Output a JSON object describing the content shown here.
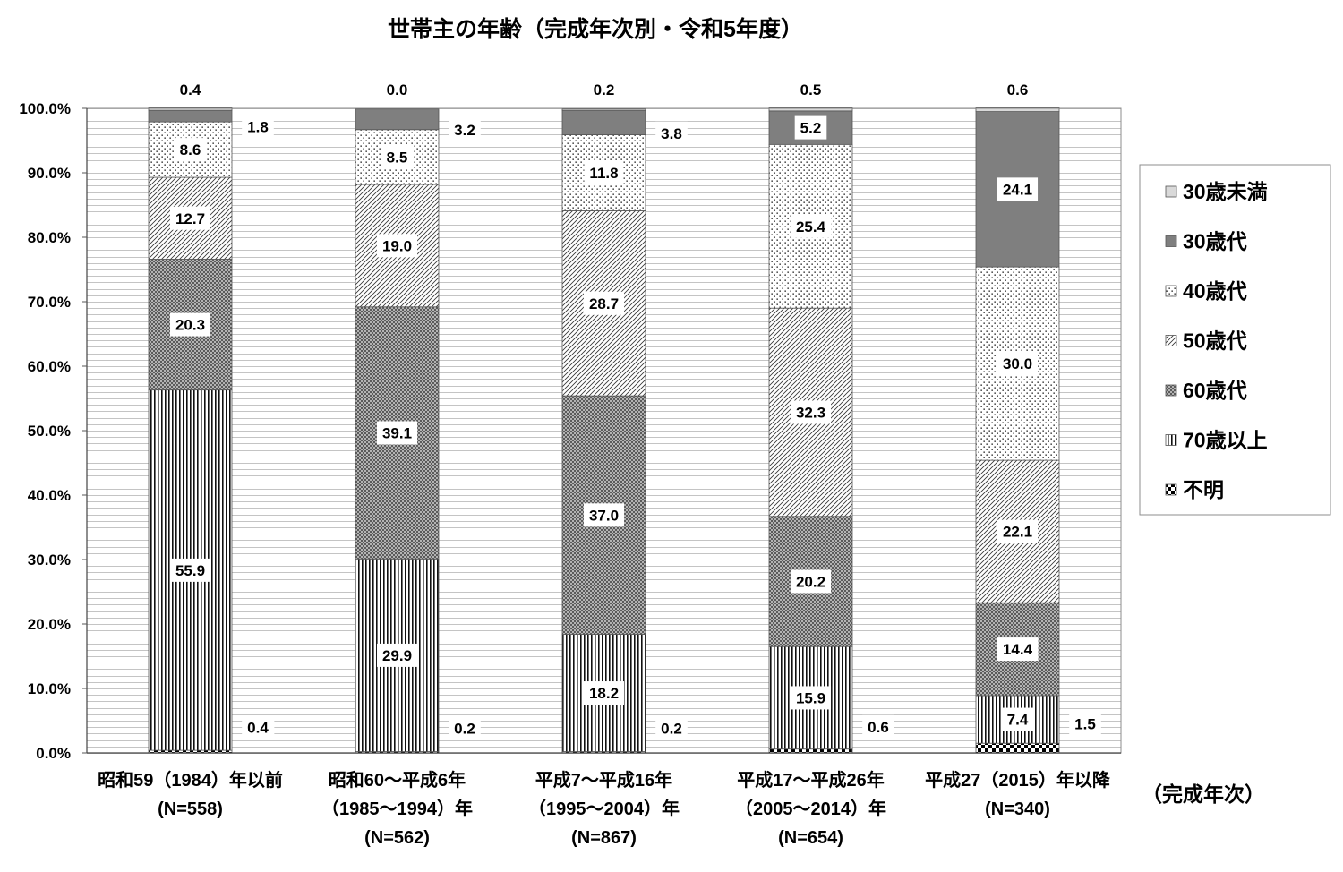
{
  "chart_data": {
    "type": "bar",
    "stacked": true,
    "title": "世帯主の年齢（完成年次別・令和5年度）",
    "xlabel": "（完成年次）",
    "ylabel": "",
    "ylim": [
      0,
      100
    ],
    "yticks": [
      "0.0%",
      "10.0%",
      "20.0%",
      "30.0%",
      "40.0%",
      "50.0%",
      "60.0%",
      "70.0%",
      "80.0%",
      "90.0%",
      "100.0%"
    ],
    "grid": true,
    "legend": "right",
    "categories": [
      [
        "昭和59（1984）年以前",
        "(N=558)"
      ],
      [
        "昭和60～平成6年",
        "（1985～1994）年",
        "(N=562)"
      ],
      [
        "平成7～平成16年",
        "（1995～2004）年",
        "(N=867)"
      ],
      [
        "平成17～平成26年",
        "（2005～2014）年",
        "(N=654)"
      ],
      [
        "平成27（2015）年以降",
        "(N=340)"
      ]
    ],
    "series": [
      {
        "name": "30歳未満",
        "values": [
          0.4,
          0.0,
          0.2,
          0.5,
          0.6
        ],
        "pattern": "solid",
        "color": "#d9d9d9"
      },
      {
        "name": "30歳代",
        "values": [
          1.8,
          3.2,
          3.8,
          5.2,
          24.1
        ],
        "pattern": "solid",
        "color": "#7f7f7f"
      },
      {
        "name": "40歳代",
        "values": [
          8.6,
          8.5,
          11.8,
          25.4,
          30.0
        ],
        "pattern": "dots"
      },
      {
        "name": "50歳代",
        "values": [
          12.7,
          19.0,
          28.7,
          32.3,
          22.1
        ],
        "pattern": "diagonal-hatch"
      },
      {
        "name": "60歳代",
        "values": [
          20.3,
          39.1,
          37.0,
          20.2,
          14.4
        ],
        "pattern": "crosshatch"
      },
      {
        "name": "70歳以上",
        "values": [
          55.9,
          29.9,
          18.2,
          15.9,
          7.4
        ],
        "pattern": "vertical-stripes"
      },
      {
        "name": "不明",
        "values": [
          0.4,
          0.2,
          0.2,
          0.6,
          1.5
        ],
        "pattern": "checkerboard"
      }
    ]
  }
}
